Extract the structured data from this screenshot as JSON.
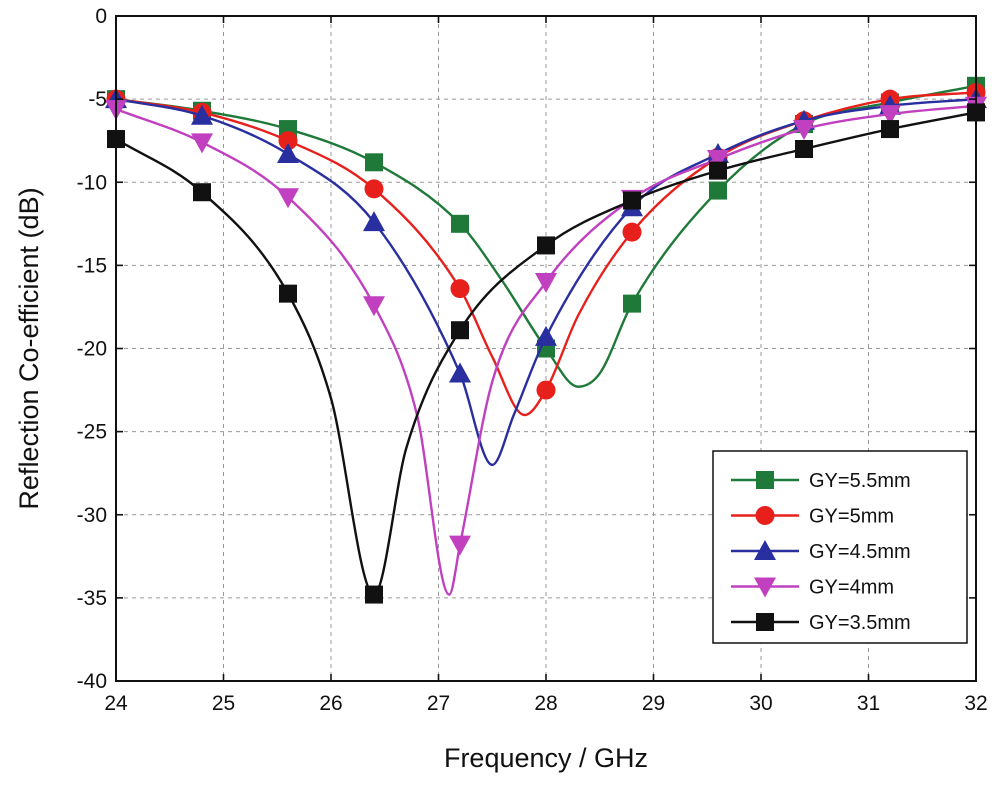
{
  "chart_data": {
    "type": "line",
    "title": "",
    "xlabel": "Frequency / GHz",
    "ylabel": "Reflection Co-efficient (dB)",
    "xlim": [
      24,
      32
    ],
    "ylim": [
      -40,
      0
    ],
    "xticks": [
      24,
      25,
      26,
      27,
      28,
      29,
      30,
      31,
      32
    ],
    "yticks": [
      0,
      -5,
      -10,
      -15,
      -20,
      -25,
      -30,
      -35,
      -40
    ],
    "grid": true,
    "legend_position": "bottom-right",
    "series": [
      {
        "name": "GY=5.5mm",
        "color": "#1f7a3a",
        "marker": "square",
        "markers_x": [
          24,
          24.8,
          25.6,
          26.4,
          27.2,
          28.0,
          28.8,
          29.6,
          30.4,
          31.2,
          32
        ],
        "markers_y": [
          -5.0,
          -5.7,
          -6.8,
          -8.8,
          -12.5,
          -20.0,
          -17.3,
          -10.5,
          -6.5,
          -5.2,
          -4.2
        ],
        "curve_x": [
          24,
          24.8,
          25.6,
          26.4,
          27.2,
          27.6,
          28.0,
          28.3,
          28.5,
          28.8,
          29.6,
          30.4,
          31.2,
          32
        ],
        "curve_y": [
          -5.0,
          -5.7,
          -6.8,
          -8.8,
          -12.5,
          -16.0,
          -20.0,
          -22.3,
          -21.5,
          -17.3,
          -10.5,
          -6.5,
          -5.2,
          -4.2
        ]
      },
      {
        "name": "GY=5mm",
        "color": "#e8201c",
        "marker": "circle",
        "markers_x": [
          24,
          24.8,
          25.6,
          26.4,
          27.2,
          28.0,
          28.8,
          29.6,
          30.4,
          31.2,
          32
        ],
        "markers_y": [
          -5.0,
          -5.8,
          -7.5,
          -10.4,
          -16.4,
          -22.5,
          -13.0,
          -8.5,
          -6.3,
          -5.0,
          -4.6
        ],
        "curve_x": [
          24,
          24.8,
          25.6,
          26.4,
          27.2,
          27.5,
          27.8,
          28.0,
          28.3,
          28.8,
          29.6,
          30.4,
          31.2,
          32
        ],
        "curve_y": [
          -5.0,
          -5.8,
          -7.5,
          -10.4,
          -16.4,
          -20.5,
          -24.0,
          -22.5,
          -18.0,
          -13.0,
          -8.5,
          -6.3,
          -5.0,
          -4.6
        ]
      },
      {
        "name": "GY=4.5mm",
        "color": "#2a2fa0",
        "marker": "triangle-up",
        "markers_x": [
          24,
          24.8,
          25.6,
          26.4,
          27.2,
          28.0,
          28.8,
          29.6,
          30.4,
          31.2,
          32
        ],
        "markers_y": [
          -5.0,
          -6.0,
          -8.3,
          -12.4,
          -21.5,
          -19.3,
          -11.5,
          -8.3,
          -6.3,
          -5.4,
          -5.0
        ],
        "curve_x": [
          24,
          24.8,
          25.6,
          26.4,
          27.2,
          27.5,
          27.7,
          28.0,
          28.8,
          29.6,
          30.4,
          31.2,
          32
        ],
        "curve_y": [
          -5.0,
          -6.0,
          -8.3,
          -12.4,
          -21.5,
          -27.0,
          -24.0,
          -19.3,
          -11.5,
          -8.3,
          -6.3,
          -5.4,
          -5.0
        ]
      },
      {
        "name": "GY=4mm",
        "color": "#c040c0",
        "marker": "triangle-down",
        "markers_x": [
          24,
          24.8,
          25.6,
          26.4,
          27.2,
          28.0,
          28.8,
          29.6,
          30.4,
          31.2,
          32
        ],
        "markers_y": [
          -5.6,
          -7.6,
          -10.9,
          -17.4,
          -31.8,
          -16.0,
          -11.0,
          -8.6,
          -6.8,
          -5.9,
          -5.4
        ],
        "curve_x": [
          24,
          24.8,
          25.6,
          26.4,
          26.8,
          27.1,
          27.2,
          27.5,
          28.0,
          28.8,
          29.6,
          30.4,
          31.2,
          32
        ],
        "curve_y": [
          -5.6,
          -7.6,
          -10.9,
          -17.4,
          -24.0,
          -34.8,
          -31.8,
          -22.0,
          -16.0,
          -11.0,
          -8.6,
          -6.8,
          -5.9,
          -5.4
        ]
      },
      {
        "name": "GY=3.5mm",
        "color": "#111111",
        "marker": "square",
        "markers_x": [
          24,
          24.8,
          25.6,
          26.4,
          27.2,
          28.0,
          28.8,
          29.6,
          30.4,
          31.2,
          32
        ],
        "markers_y": [
          -7.4,
          -10.6,
          -16.7,
          -34.8,
          -18.9,
          -13.8,
          -11.1,
          -9.3,
          -8.0,
          -6.8,
          -5.8
        ],
        "curve_x": [
          24,
          24.8,
          25.6,
          26.0,
          26.4,
          26.7,
          27.2,
          28.0,
          28.8,
          29.6,
          30.4,
          31.2,
          32
        ],
        "curve_y": [
          -7.4,
          -10.6,
          -16.7,
          -23.0,
          -34.8,
          -26.0,
          -18.9,
          -13.8,
          -11.1,
          -9.3,
          -8.0,
          -6.8,
          -5.8
        ]
      }
    ]
  }
}
